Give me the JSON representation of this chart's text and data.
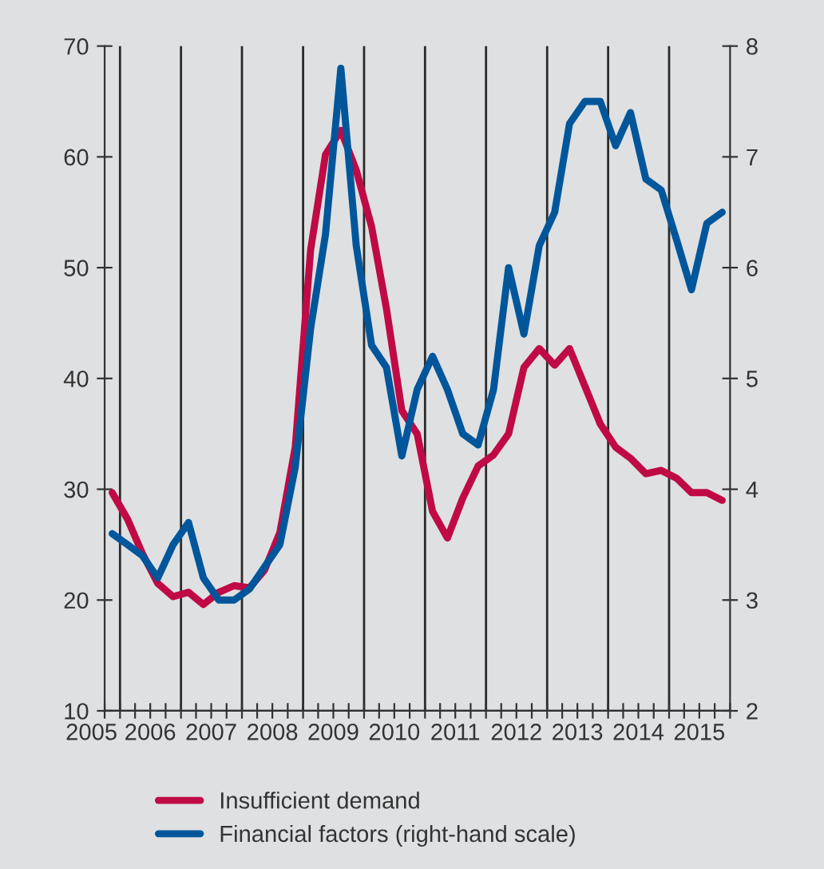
{
  "chart_data": {
    "type": "line",
    "x": [
      "2005-11-15",
      "2006-02-15",
      "2006-05-15",
      "2006-08-15",
      "2006-11-15",
      "2007-02-15",
      "2007-05-15",
      "2007-08-15",
      "2007-11-15",
      "2008-02-15",
      "2008-05-15",
      "2008-08-15",
      "2008-11-15",
      "2009-02-15",
      "2009-05-15",
      "2009-08-15",
      "2009-11-15",
      "2010-02-15",
      "2010-05-15",
      "2010-08-15",
      "2010-11-15",
      "2011-02-15",
      "2011-05-15",
      "2011-08-15",
      "2011-11-15",
      "2012-02-15",
      "2012-05-15",
      "2012-08-15",
      "2012-11-15",
      "2013-02-15",
      "2013-05-15",
      "2013-08-15",
      "2013-11-15",
      "2014-02-15",
      "2014-05-15",
      "2014-08-15",
      "2014-11-15",
      "2015-02-15",
      "2015-05-15",
      "2015-08-15",
      "2015-11-15"
    ],
    "series": [
      {
        "name": "Insufficient demand",
        "color": "#bf0a46",
        "axis": "y",
        "values": [
          29.7,
          27.3,
          24.2,
          21.5,
          20.3,
          20.7,
          19.6,
          20.7,
          21.3,
          21.1,
          22.7,
          26.1,
          33.8,
          51.6,
          60.2,
          62.4,
          58.8,
          53.7,
          46.3,
          37.1,
          35.0,
          28.0,
          25.6,
          29.2,
          32.1,
          33.1,
          35.0,
          41.0,
          42.7,
          41.2,
          42.7,
          39.3,
          35.9,
          33.8,
          32.8,
          31.4,
          31.7,
          31.0,
          29.7,
          29.7,
          29.0
        ]
      },
      {
        "name": "Financial factors (right-hand scale)",
        "color": "#00569b",
        "axis": "y2",
        "values": [
          3.6,
          3.5,
          3.4,
          3.2,
          3.5,
          3.7,
          3.2,
          3.0,
          3.0,
          3.1,
          3.3,
          3.5,
          4.2,
          5.45,
          6.3,
          7.8,
          6.2,
          5.3,
          5.1,
          4.3,
          4.9,
          5.2,
          4.9,
          4.5,
          4.4,
          4.9,
          6.0,
          5.4,
          6.2,
          6.5,
          7.3,
          7.5,
          7.5,
          7.1,
          7.4,
          6.8,
          6.7,
          6.25,
          5.8,
          6.4,
          6.5
        ]
      }
    ],
    "xlim": [
      "2005-10-01",
      "2016-01-01"
    ],
    "xticks": [
      {
        "value": "2005-10-01",
        "label": "2005"
      },
      {
        "value": "2006-01-01",
        "label": null
      },
      {
        "value": "2006-04-01",
        "label": null
      },
      {
        "value": "2006-07-01",
        "label": "2006"
      },
      {
        "value": "2006-10-01",
        "label": null
      },
      {
        "value": "2007-01-01",
        "label": null
      },
      {
        "value": "2007-04-01",
        "label": null
      },
      {
        "value": "2007-07-01",
        "label": "2007"
      },
      {
        "value": "2007-10-01",
        "label": null
      },
      {
        "value": "2008-01-01",
        "label": null
      },
      {
        "value": "2008-04-01",
        "label": null
      },
      {
        "value": "2008-07-01",
        "label": "2008"
      },
      {
        "value": "2008-10-01",
        "label": null
      },
      {
        "value": "2009-01-01",
        "label": null
      },
      {
        "value": "2009-04-01",
        "label": null
      },
      {
        "value": "2009-07-01",
        "label": "2009"
      },
      {
        "value": "2009-10-01",
        "label": null
      },
      {
        "value": "2010-01-01",
        "label": null
      },
      {
        "value": "2010-04-01",
        "label": null
      },
      {
        "value": "2010-07-01",
        "label": "2010"
      },
      {
        "value": "2010-10-01",
        "label": null
      },
      {
        "value": "2011-01-01",
        "label": null
      },
      {
        "value": "2011-04-01",
        "label": null
      },
      {
        "value": "2011-07-01",
        "label": "2011"
      },
      {
        "value": "2011-10-01",
        "label": null
      },
      {
        "value": "2012-01-01",
        "label": null
      },
      {
        "value": "2012-04-01",
        "label": null
      },
      {
        "value": "2012-07-01",
        "label": "2012"
      },
      {
        "value": "2012-10-01",
        "label": null
      },
      {
        "value": "2013-01-01",
        "label": null
      },
      {
        "value": "2013-04-01",
        "label": null
      },
      {
        "value": "2013-07-01",
        "label": "2013"
      },
      {
        "value": "2013-10-01",
        "label": null
      },
      {
        "value": "2014-01-01",
        "label": null
      },
      {
        "value": "2014-04-01",
        "label": null
      },
      {
        "value": "2014-07-01",
        "label": "2014"
      },
      {
        "value": "2014-10-01",
        "label": null
      },
      {
        "value": "2015-01-01",
        "label": null
      },
      {
        "value": "2015-04-01",
        "label": null
      },
      {
        "value": "2015-07-01",
        "label": "2015"
      },
      {
        "value": "2015-10-01",
        "label": null
      },
      {
        "value": "2016-01-01",
        "label": null
      }
    ],
    "ylim": [
      10,
      70
    ],
    "yticks": [
      10,
      20,
      30,
      40,
      50,
      60,
      70
    ],
    "y2lim": [
      2,
      8
    ],
    "y2ticks": [
      2,
      3,
      4,
      5,
      6,
      7,
      8
    ],
    "ref_lines": [
      {
        "axis": "x",
        "value": "2006-01-01",
        "color": "#2b2b2b"
      },
      {
        "axis": "x",
        "value": "2007-01-01",
        "color": "#2b2b2b"
      },
      {
        "axis": "x",
        "value": "2008-01-01",
        "color": "#2b2b2b"
      },
      {
        "axis": "x",
        "value": "2009-01-01",
        "color": "#2b2b2b"
      },
      {
        "axis": "x",
        "value": "2010-01-01",
        "color": "#2b2b2b"
      },
      {
        "axis": "x",
        "value": "2011-01-01",
        "color": "#2b2b2b"
      },
      {
        "axis": "x",
        "value": "2012-01-01",
        "color": "#2b2b2b"
      },
      {
        "axis": "x",
        "value": "2013-01-01",
        "color": "#2b2b2b"
      },
      {
        "axis": "x",
        "value": "2014-01-01",
        "color": "#2b2b2b"
      },
      {
        "axis": "x",
        "value": "2015-01-01",
        "color": "#2b2b2b"
      }
    ],
    "grid": false,
    "legend": "bottom",
    "line_style": "solid",
    "marker": "none"
  }
}
